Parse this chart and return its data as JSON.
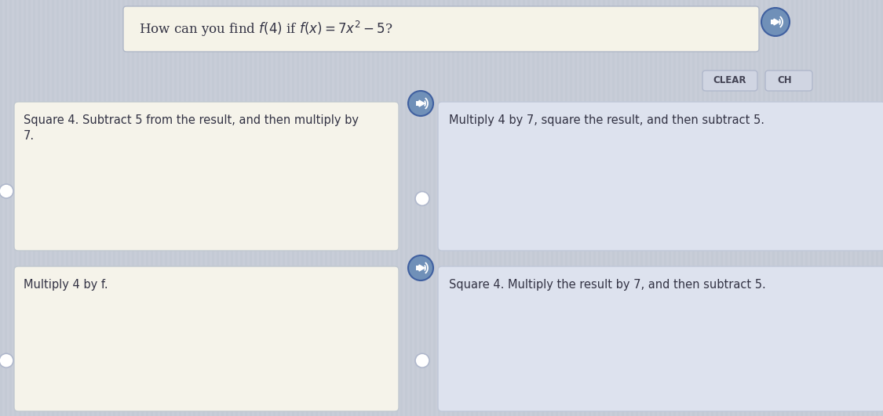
{
  "bg_color": "#c8cdd8",
  "question_box_color": "#f5f3e8",
  "question_box_border": "#b0b8c8",
  "left_box_color": "#f5f3ea",
  "left_box_border": "#c0c8d0",
  "right_box_color": "#dde2ee",
  "right_box_border": "#c0c8d8",
  "clear_btn_color": "#d0d5e2",
  "clear_btn_border": "#b0b8cc",
  "clear_btn_text": "CLEAR",
  "ch_btn_text": "CH",
  "speaker_btn_color": "#7090b8",
  "speaker_btn_border": "#4060a0",
  "radio_color": "#ffffff",
  "radio_border": "#b0b8cc",
  "text_color": "#333344",
  "font_size": 10.5,
  "q_font_size": 12,
  "q_text": "How can you find f(4) if f(x) = 7x² − 5?",
  "box0_line1": "Square 4. Subtract 5 from the result, and then multiply by",
  "box0_line2": "7.",
  "box1_text": "Multiply 4 by 7, square the result, and then subtract 5.",
  "box2_text": "Multiply 4 by f.",
  "box3_line1": "Square 4. Multiply the result by 7, and then subtract 5.",
  "stripe_color": "#bfc5d0",
  "stripe_alpha": 0.35
}
